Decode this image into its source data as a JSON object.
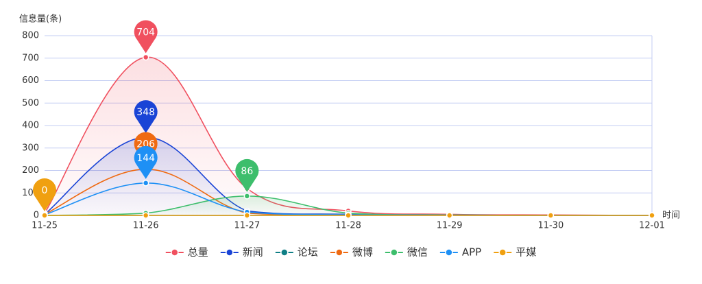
{
  "chart_data": {
    "type": "line",
    "y_axis_label": "信息量(条)",
    "x_axis_label": "时间",
    "categories": [
      "11-25",
      "11-26",
      "11-27",
      "11-28",
      "11-29",
      "11-30",
      "12-01"
    ],
    "ylim": [
      0,
      800
    ],
    "yticks": [
      0,
      100,
      200,
      300,
      400,
      500,
      600,
      700,
      800
    ],
    "grid": true,
    "legend": "bottom",
    "series": [
      {
        "name": "总量",
        "color": "#f0505f",
        "area": true,
        "values": [
          10,
          704,
          120,
          20,
          5,
          2,
          0
        ]
      },
      {
        "name": "新闻",
        "color": "#1a44d6",
        "area": true,
        "values": [
          5,
          348,
          20,
          5,
          2,
          0,
          0
        ]
      },
      {
        "name": "论坛",
        "color": "#0f7f86",
        "area": false,
        "values": [
          0,
          0,
          0,
          0,
          0,
          0,
          0
        ]
      },
      {
        "name": "微博",
        "color": "#ef6a12",
        "area": false,
        "values": [
          5,
          206,
          10,
          3,
          1,
          0,
          0
        ]
      },
      {
        "name": "微信",
        "color": "#3dbe6c",
        "area": true,
        "values": [
          0,
          10,
          86,
          10,
          2,
          0,
          0
        ]
      },
      {
        "name": "APP",
        "color": "#1e90f5",
        "area": false,
        "values": [
          3,
          144,
          15,
          3,
          1,
          0,
          0
        ]
      },
      {
        "name": "平媒",
        "color": "#f0a010",
        "area": false,
        "values": [
          0,
          0,
          0,
          0,
          0,
          0,
          0
        ]
      }
    ]
  }
}
